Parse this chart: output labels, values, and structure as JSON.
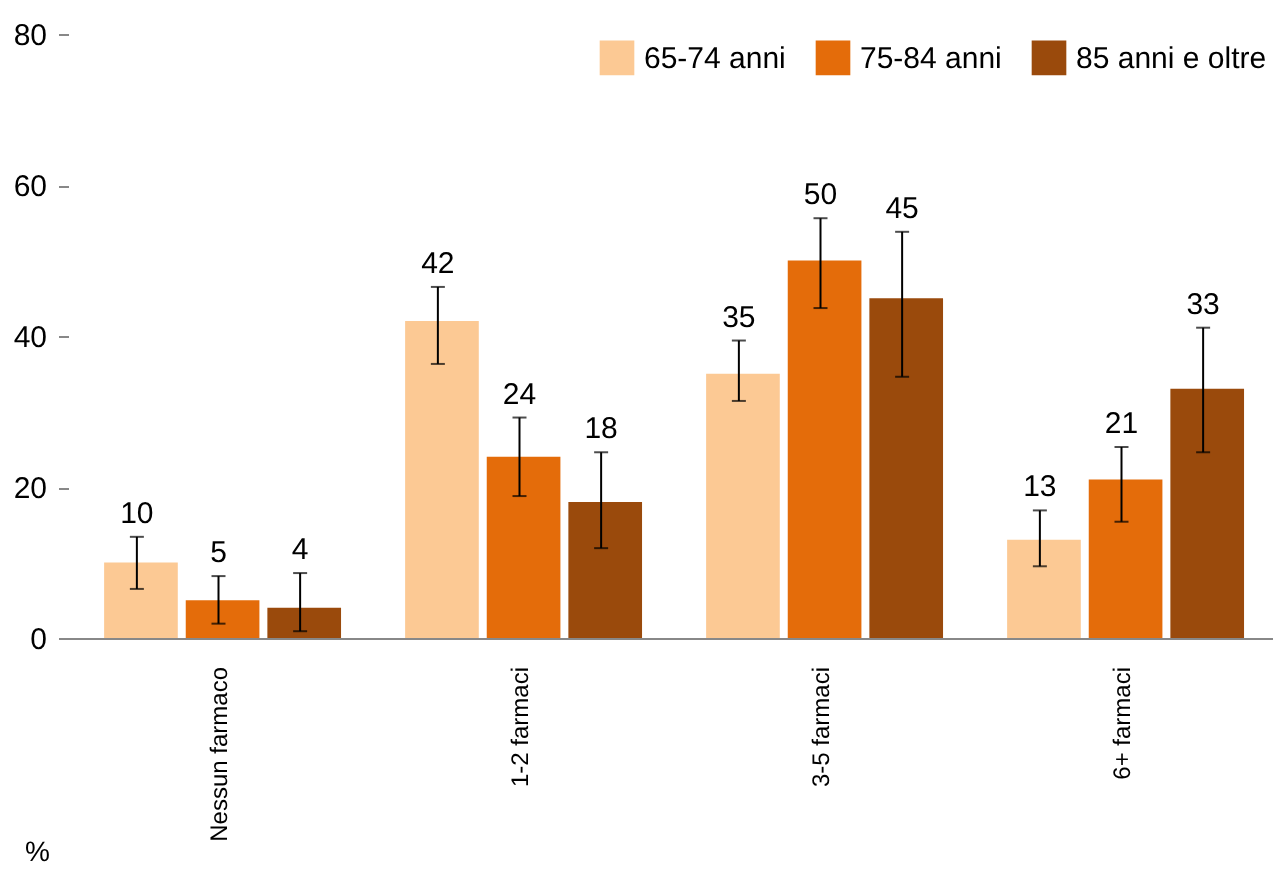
{
  "chart_data": {
    "type": "bar",
    "ylabel": "%",
    "categories": [
      "Nessun farmaco",
      "1-2 farmaci",
      "3-5 farmaci",
      "6+ farmaci"
    ],
    "series": [
      {
        "name": "65-74 anni",
        "color": "#fcc994",
        "values": [
          10,
          42,
          35,
          13
        ],
        "errors": [
          [
            6.5,
            13.4
          ],
          [
            36.3,
            46.5
          ],
          [
            31.4,
            39.4
          ],
          [
            9.5,
            16.9
          ]
        ]
      },
      {
        "name": "75-84 anni",
        "color": "#e46c0a",
        "values": [
          5,
          24,
          50,
          21
        ],
        "errors": [
          [
            1.9,
            8.2
          ],
          [
            18.8,
            29.2
          ],
          [
            43.7,
            55.6
          ],
          [
            15.4,
            25.3
          ]
        ]
      },
      {
        "name": "85 anni e oltre",
        "color": "#9a4a0c",
        "values": [
          4,
          18,
          45,
          33
        ],
        "errors": [
          [
            0.9,
            8.6
          ],
          [
            11.9,
            24.6
          ],
          [
            34.6,
            53.8
          ],
          [
            24.6,
            41.1
          ]
        ]
      }
    ],
    "ylim": [
      0,
      80
    ],
    "yticks": [
      0,
      20,
      40,
      60,
      80
    ],
    "grid": false,
    "legend": "top right",
    "data_labels": true
  }
}
